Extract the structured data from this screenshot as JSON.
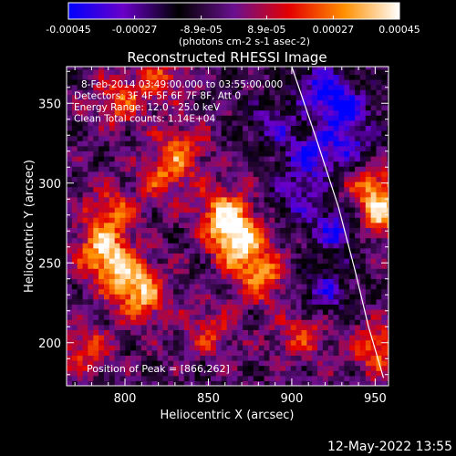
{
  "colorbar": {
    "ticks": [
      "-0.00045",
      "-0.00027",
      "-8.9e-05",
      "8.9e-05",
      "0.00027",
      "0.00045"
    ],
    "tick_values": [
      -0.00045,
      -0.00027,
      -8.9e-05,
      8.9e-05,
      0.00027,
      0.00045
    ],
    "range": [
      -0.00045,
      0.00045
    ],
    "units_label": "(photons cm-2 s-1 asec-2)",
    "colormap": [
      "#0000ff",
      "#6a00c8",
      "#000000",
      "#6a1090",
      "#e40000",
      "#ff9000",
      "#ffffff"
    ]
  },
  "chart_data": {
    "type": "heatmap",
    "title": "Reconstructed RHESSI Image",
    "xlabel": "Heliocentric X (arcsec)",
    "ylabel": "Heliocentric Y (arcsec)",
    "xlim": [
      765,
      958
    ],
    "ylim": [
      173,
      373
    ],
    "xticks": [
      800,
      850,
      900,
      950
    ],
    "yticks": [
      200,
      250,
      300,
      350
    ],
    "info_lines": [
      "8-Feb-2014 03:49:00.000 to 03:55:00.000",
      "Detectors: 3F 4F 5F 6F 7F 8F, Att 0",
      "Energy Range: 12.0 - 25.0 keV",
      "Clean     Total counts: 1.14E+04"
    ],
    "peak_label": "Position of Peak = [866,262]",
    "peak": [
      866,
      262
    ],
    "limb_line": [
      [
        900,
        373
      ],
      [
        914,
        330
      ],
      [
        928,
        285
      ],
      [
        938,
        245
      ],
      [
        946,
        210
      ],
      [
        955,
        178
      ]
    ],
    "hot_spots": [
      {
        "x": 866,
        "y": 262,
        "v": 1.0
      },
      {
        "x": 858,
        "y": 280,
        "v": 0.85
      },
      {
        "x": 880,
        "y": 240,
        "v": 0.7
      },
      {
        "x": 785,
        "y": 255,
        "v": 0.85
      },
      {
        "x": 800,
        "y": 240,
        "v": 0.75
      },
      {
        "x": 790,
        "y": 280,
        "v": 0.6
      },
      {
        "x": 810,
        "y": 225,
        "v": 0.6
      },
      {
        "x": 832,
        "y": 320,
        "v": 0.55
      },
      {
        "x": 822,
        "y": 302,
        "v": 0.5
      },
      {
        "x": 952,
        "y": 280,
        "v": 0.9
      },
      {
        "x": 945,
        "y": 300,
        "v": 0.6
      },
      {
        "x": 950,
        "y": 195,
        "v": 0.65
      },
      {
        "x": 795,
        "y": 350,
        "v": 0.55
      },
      {
        "x": 820,
        "y": 365,
        "v": 0.5
      },
      {
        "x": 905,
        "y": 205,
        "v": 0.5
      },
      {
        "x": 850,
        "y": 205,
        "v": 0.45
      },
      {
        "x": 775,
        "y": 195,
        "v": 0.5
      }
    ],
    "cold_spots": [
      {
        "x": 930,
        "y": 345,
        "v": -0.8
      },
      {
        "x": 910,
        "y": 315,
        "v": -0.7
      },
      {
        "x": 925,
        "y": 270,
        "v": -0.75
      },
      {
        "x": 935,
        "y": 320,
        "v": -0.6
      },
      {
        "x": 900,
        "y": 290,
        "v": -0.5
      },
      {
        "x": 888,
        "y": 335,
        "v": -0.55
      },
      {
        "x": 918,
        "y": 230,
        "v": -0.6
      },
      {
        "x": 915,
        "y": 360,
        "v": -0.65
      }
    ]
  },
  "footer": {
    "date": "12-May-2022 13:55"
  }
}
